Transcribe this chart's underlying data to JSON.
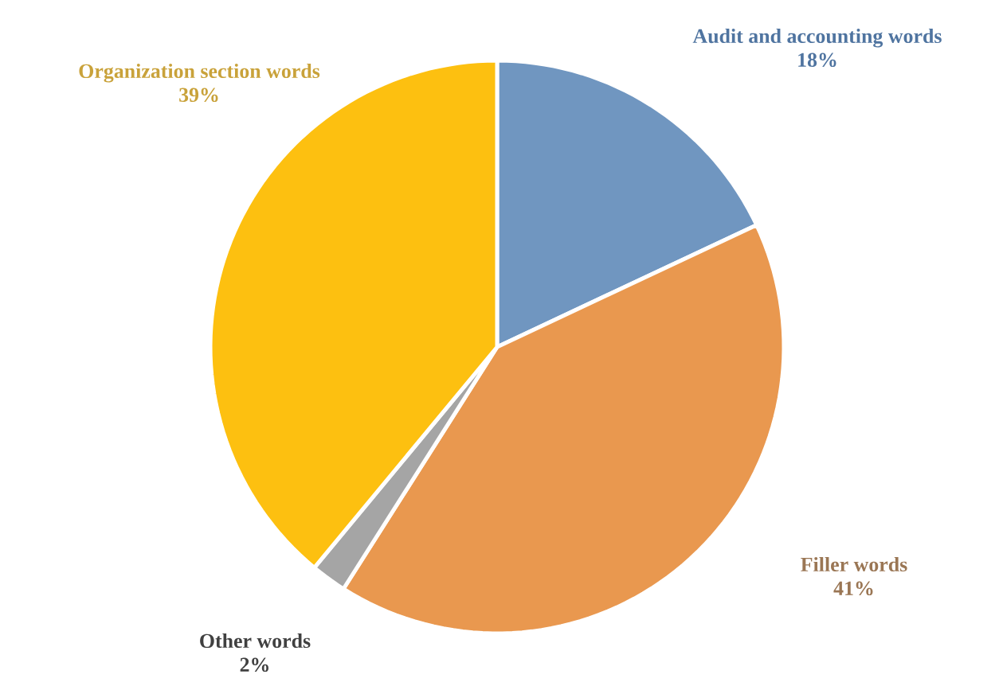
{
  "chart_data": {
    "type": "pie",
    "categories": [
      "Audit and accounting words",
      "Filler words",
      "Other words",
      "Organization section words"
    ],
    "values": [
      18,
      41,
      2,
      39
    ],
    "value_labels": [
      "18%",
      "41%",
      "2%",
      "39%"
    ],
    "colors": [
      "#7096c0",
      "#e9984f",
      "#a5a5a5",
      "#fdc010"
    ]
  }
}
